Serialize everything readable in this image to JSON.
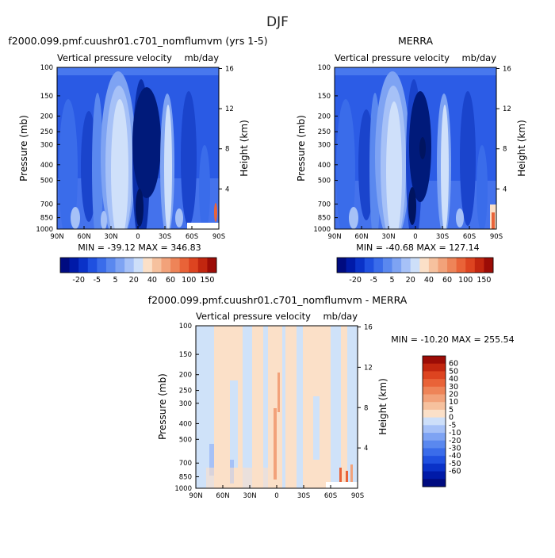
{
  "page_title": "DJF",
  "colors": {
    "panel_blues": [
      "#001a7a",
      "#0a2ea8",
      "#1a44cc",
      "#2c5ce6",
      "#4878ee",
      "#6e98f2",
      "#a2bff6",
      "#cfe0fa"
    ],
    "diverging": [
      "#000b80",
      "#001aa8",
      "#0a32c8",
      "#1f50e0",
      "#3a6cea",
      "#5a88ef",
      "#7ea3f3",
      "#a6c1f7",
      "#cddff9",
      "#fbe0c8",
      "#f6c19e",
      "#f2a27a",
      "#ee8458",
      "#e96338",
      "#dd4420",
      "#c2260f",
      "#9c0c06"
    ],
    "diff_blue": "#cfe2f9",
    "diff_peach": "#fbe0c8",
    "diff_orange": "#f2a27a",
    "diff_red": "#e96338"
  },
  "chart_data": [
    {
      "type": "heatmap",
      "title": "f2000.099.pmf.cuushr01.c701_nomflumvm (yrs 1-5)",
      "subtitle_left": "Vertical pressure velocity",
      "subtitle_right": "mb/day",
      "ylabel": "Pressure (mb)",
      "ylabel_right": "Height (km)",
      "x_ticks": [
        "90N",
        "60N",
        "30N",
        "0",
        "30S",
        "60S",
        "90S"
      ],
      "y_ticks": [
        "100",
        "150",
        "200",
        "250",
        "300",
        "400",
        "500",
        "700",
        "850",
        "1000"
      ],
      "y_right_ticks": [
        "16",
        "12",
        "8",
        "4"
      ],
      "stats": "MIN = -39.12   MAX = 346.83",
      "colorbar_labels": [
        "-20",
        "-5",
        "5",
        "20",
        "40",
        "60",
        "100",
        "150"
      ]
    },
    {
      "type": "heatmap",
      "title": "MERRA",
      "subtitle_left": "Vertical pressure velocity",
      "subtitle_right": "mb/day",
      "ylabel": "Pressure (mb)",
      "ylabel_right": "Height (km)",
      "x_ticks": [
        "90N",
        "60N",
        "30N",
        "0",
        "30S",
        "60S",
        "90S"
      ],
      "y_ticks": [
        "100",
        "150",
        "200",
        "250",
        "300",
        "400",
        "500",
        "700",
        "850",
        "1000"
      ],
      "y_right_ticks": [
        "16",
        "12",
        "8",
        "4"
      ],
      "stats": "MIN = -40.68   MAX = 127.14",
      "colorbar_labels": [
        "-20",
        "-5",
        "5",
        "20",
        "40",
        "60",
        "100",
        "150"
      ]
    },
    {
      "type": "heatmap",
      "title": "f2000.099.pmf.cuushr01.c701_nomflumvm - MERRA",
      "subtitle_left": "Vertical pressure velocity",
      "subtitle_right": "mb/day",
      "ylabel": "Pressure (mb)",
      "ylabel_right": "Height (km)",
      "x_ticks": [
        "90N",
        "60N",
        "30N",
        "0",
        "30S",
        "60S",
        "90S"
      ],
      "y_ticks": [
        "100",
        "150",
        "200",
        "250",
        "300",
        "400",
        "500",
        "700",
        "850",
        "1000"
      ],
      "y_right_ticks": [
        "16",
        "12",
        "8",
        "4"
      ],
      "stats": "MIN = -10.20   MAX = 255.54",
      "colorbar_labels": [
        "60",
        "50",
        "40",
        "30",
        "20",
        "10",
        "5",
        "0",
        "-5",
        "-10",
        "-20",
        "-30",
        "-40",
        "-50",
        "-60"
      ]
    }
  ]
}
